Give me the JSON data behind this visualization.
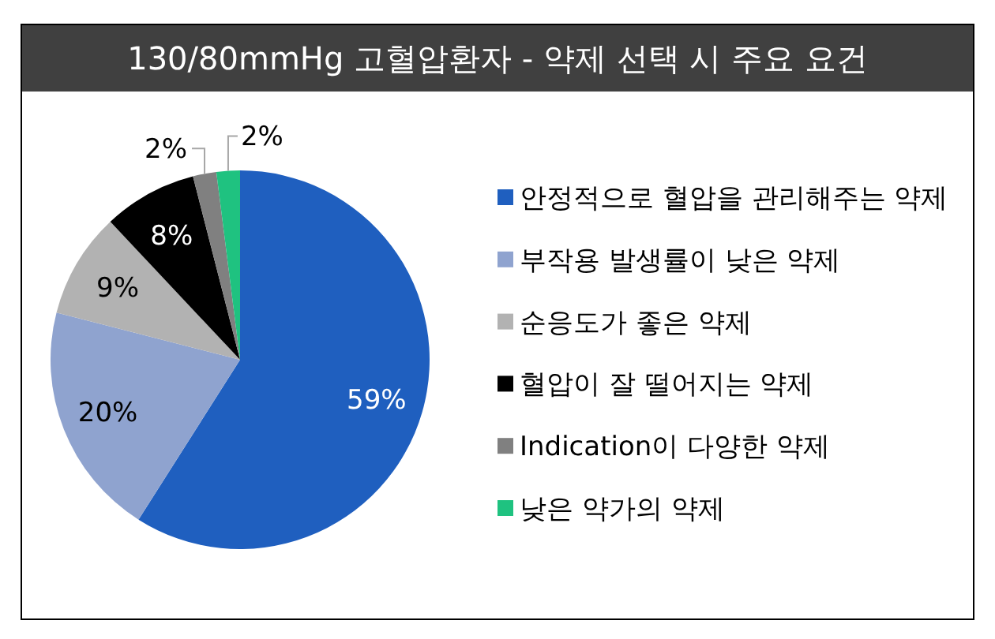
{
  "chart_data": {
    "type": "pie",
    "title": "130/80mmHg 고혈압환자 - 약제 선택 시 주요 요건",
    "categories": [
      "안정적으로 혈압을 관리해주는 약제",
      "부작용 발생률이 낮은 약제",
      "순응도가 좋은 약제",
      "혈압이 잘 떨어지는 약제",
      "Indication이 다양한 약제",
      "낮은 약가의 약제"
    ],
    "values": [
      59,
      20,
      9,
      8,
      2,
      2
    ],
    "colors": [
      "#1f5fbf",
      "#8fa3cf",
      "#b2b2b2",
      "#000000",
      "#808080",
      "#1fc280"
    ],
    "value_labels": [
      "59%",
      "20%",
      "9%",
      "8%",
      "2%",
      "2%"
    ],
    "legend": "right"
  }
}
